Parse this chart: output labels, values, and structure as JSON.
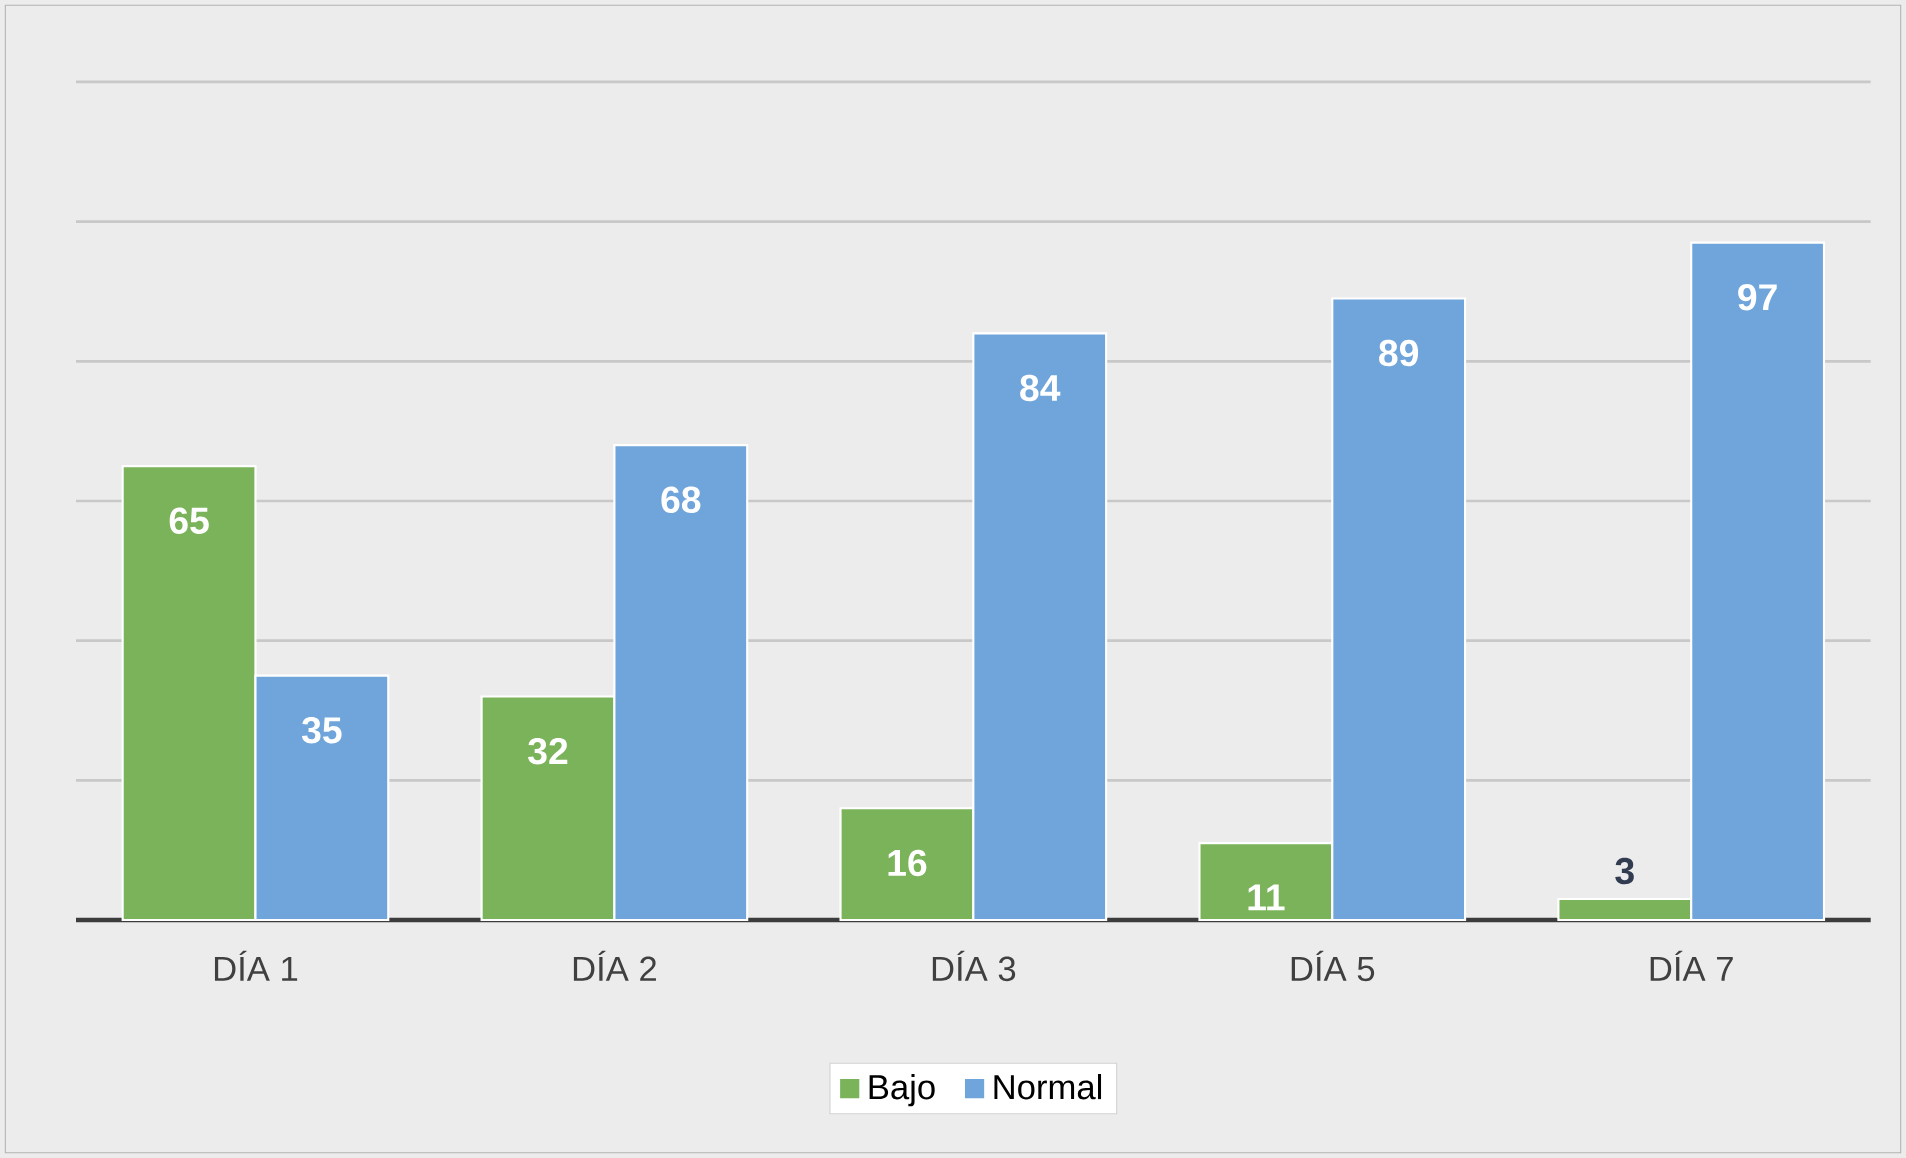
{
  "chart_data": {
    "type": "bar",
    "categories": [
      "DÍA 1",
      "DÍA 2",
      "DÍA 3",
      "DÍA 5",
      "DÍA 7"
    ],
    "series": [
      {
        "name": "Bajo",
        "color": "#7ab35a",
        "values": [
          65,
          32,
          16,
          11,
          3
        ]
      },
      {
        "name": "Normal",
        "color": "#6fa5da",
        "values": [
          35,
          68,
          84,
          89,
          97
        ]
      }
    ],
    "grid": "y",
    "tick_labels": "x",
    "data_labels": true,
    "legend": "bottom"
  }
}
